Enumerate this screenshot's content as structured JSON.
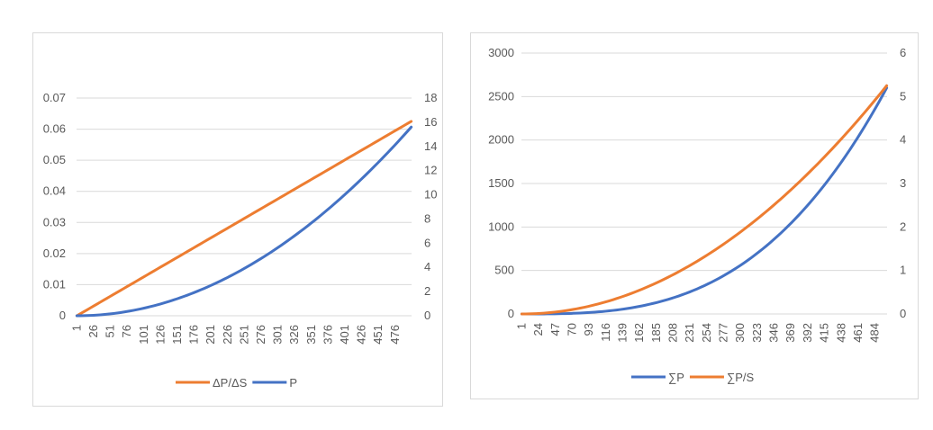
{
  "colors": {
    "orange": "#ED7D31",
    "blue": "#4472C4",
    "grid": "#d9d9d9",
    "text": "#595959"
  },
  "chart_data": [
    {
      "type": "line",
      "x_categories_count": 500,
      "x_tick_labels": [
        "1",
        "26",
        "51",
        "76",
        "101",
        "126",
        "151",
        "176",
        "201",
        "226",
        "251",
        "276",
        "301",
        "326",
        "351",
        "376",
        "401",
        "426",
        "451",
        "476"
      ],
      "y_left": {
        "range": [
          0,
          0.07
        ],
        "ticks": [
          "0",
          "0.01",
          "0.02",
          "0.03",
          "0.04",
          "0.05",
          "0.06",
          "0.07"
        ]
      },
      "y_right": {
        "range": [
          0,
          18
        ],
        "ticks": [
          "0",
          "2",
          "4",
          "6",
          "8",
          "10",
          "12",
          "14",
          "16",
          "18"
        ]
      },
      "series": [
        {
          "name": "ΔP/ΔS",
          "axis": "left",
          "color": "#ED7D31",
          "formula": "linear",
          "start": 0,
          "end": 0.0625
        },
        {
          "name": "P",
          "axis": "right",
          "color": "#4472C4",
          "formula": "quadratic",
          "start": 0,
          "end": 15.6
        }
      ],
      "legend": [
        "ΔP/ΔS",
        "P"
      ],
      "legend_position": "bottom"
    },
    {
      "type": "line",
      "x_categories_count": 500,
      "x_tick_labels": [
        "1",
        "24",
        "47",
        "70",
        "93",
        "116",
        "139",
        "162",
        "185",
        "208",
        "231",
        "254",
        "277",
        "300",
        "323",
        "346",
        "369",
        "392",
        "415",
        "438",
        "461",
        "484"
      ],
      "y_left": {
        "range": [
          0,
          3000
        ],
        "ticks": [
          "0",
          "500",
          "1000",
          "1500",
          "2000",
          "2500",
          "3000"
        ]
      },
      "y_right": {
        "range": [
          0,
          6
        ],
        "ticks": [
          "0",
          "1",
          "2",
          "3",
          "4",
          "5",
          "6"
        ]
      },
      "series": [
        {
          "name": "∑P",
          "axis": "left",
          "color": "#4472C4",
          "formula": "cubic",
          "start": 0,
          "end": 2600
        },
        {
          "name": "∑P/S",
          "axis": "right",
          "color": "#ED7D31",
          "formula": "quadratic",
          "start": 0,
          "end": 5.25
        }
      ],
      "legend": [
        "∑P",
        "∑P/S"
      ],
      "legend_position": "bottom"
    }
  ]
}
